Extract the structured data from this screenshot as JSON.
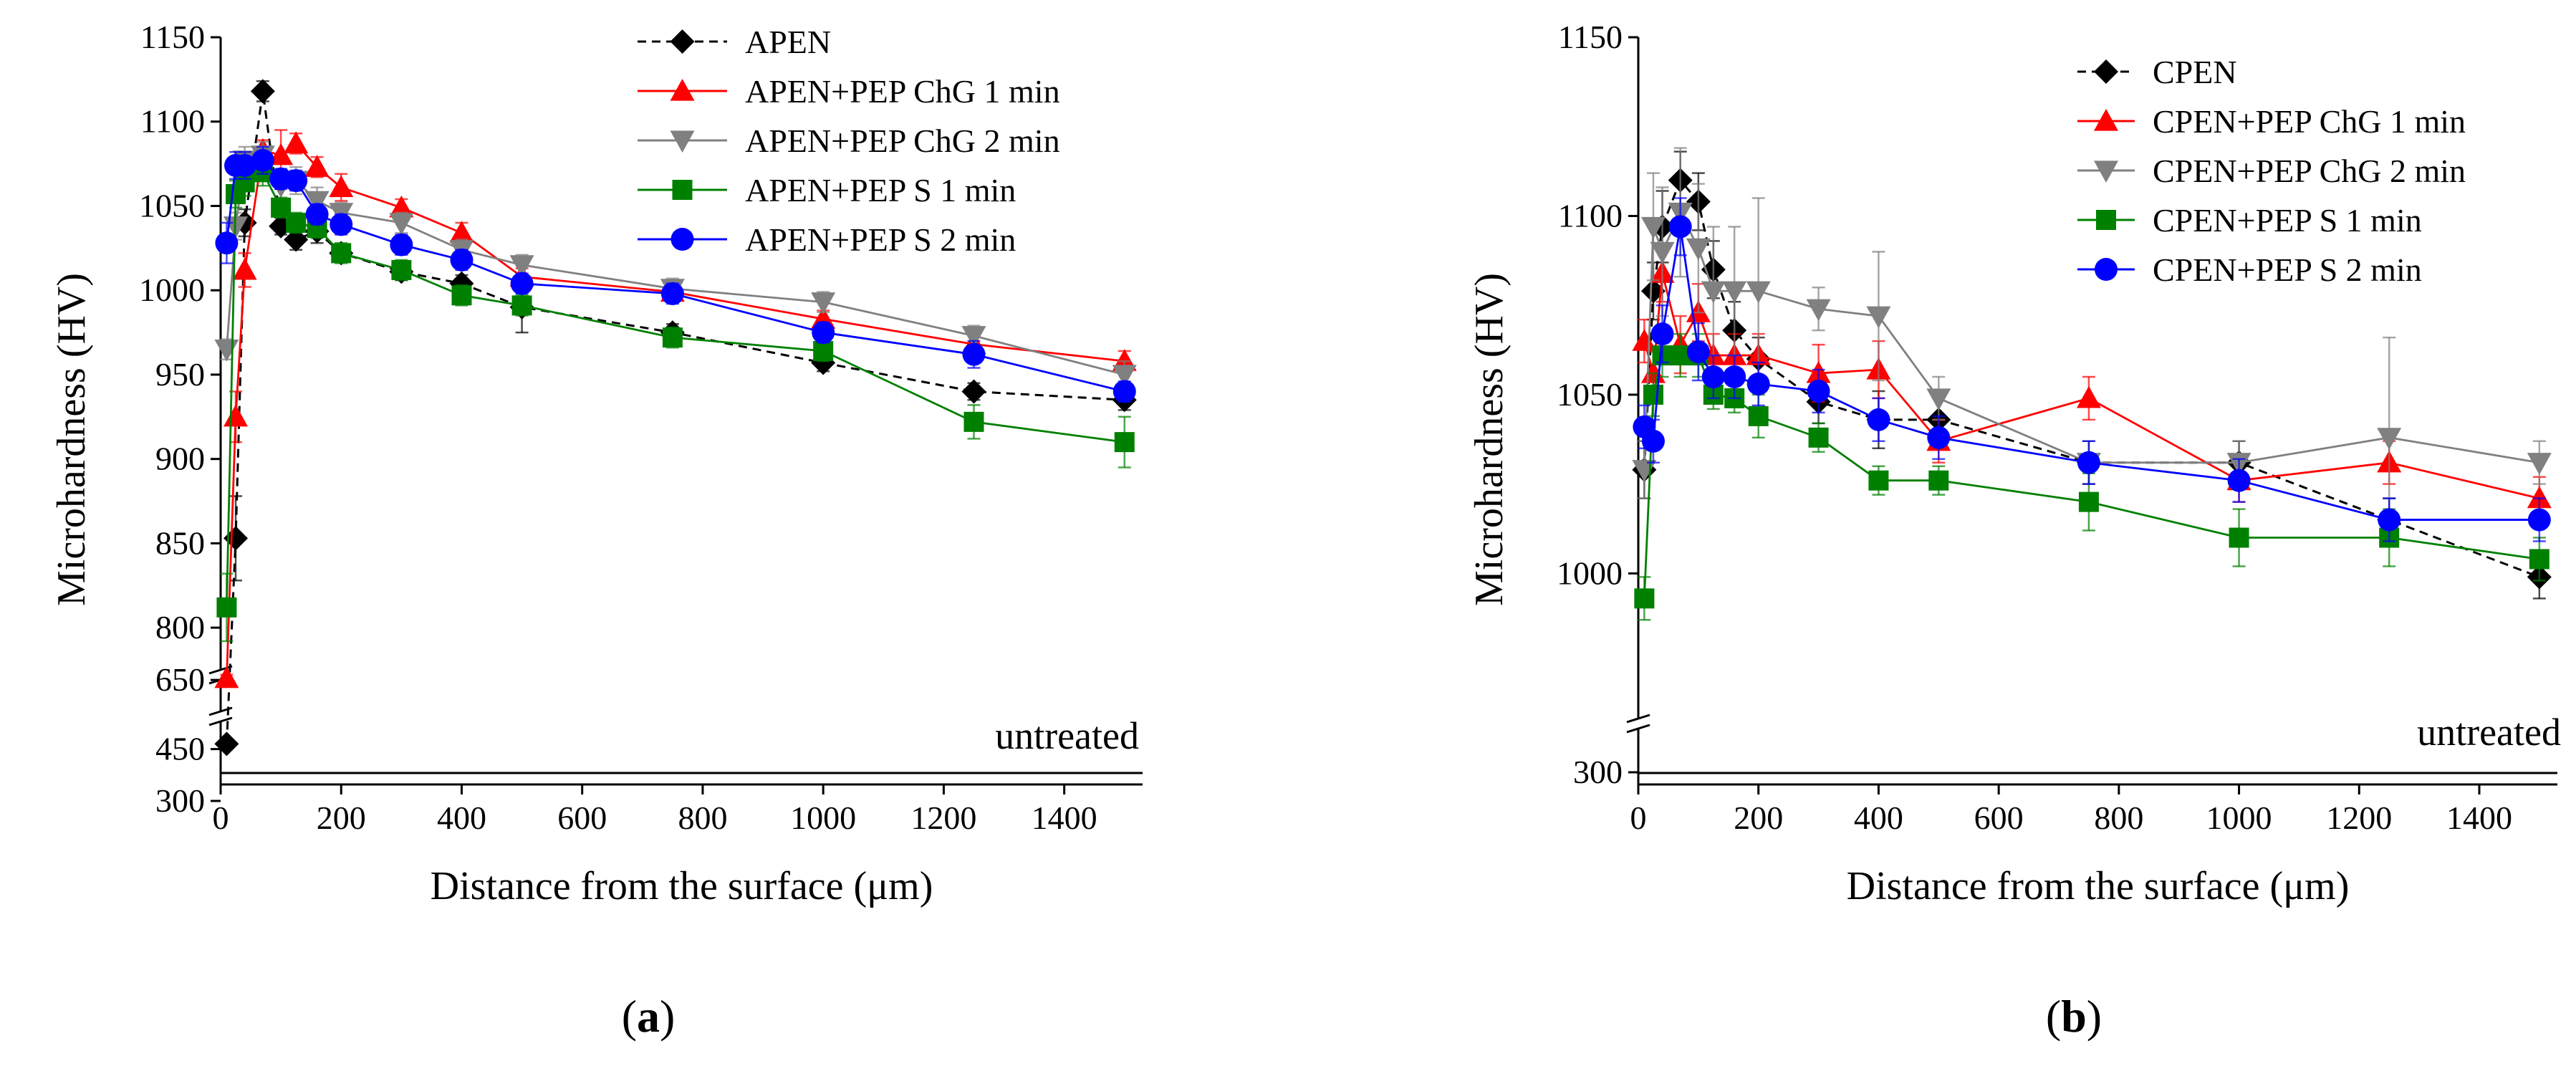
{
  "chart_data": [
    {
      "type": "line",
      "panel_label": "a",
      "xlabel": "Distance from the surface (μm)",
      "ylabel": "Microhardness (HV)",
      "xlim": [
        0,
        1530
      ],
      "ylim": [
        300,
        1150
      ],
      "axis_break": "broken y-axis: main segment 775–1150 HV; lower segment 300–700 HV",
      "x_ticks": [
        0,
        200,
        400,
        600,
        800,
        1000,
        1200,
        1400
      ],
      "x_tick_labels": [
        "0",
        "200",
        "400",
        "600",
        "800",
        "1000",
        "1200",
        "1400"
      ],
      "y_ticks": [
        800,
        850,
        900,
        950,
        1000,
        1050,
        1100,
        1150
      ],
      "y_tick_labels": [
        "800",
        "850",
        "900",
        "950",
        "1000",
        "1050",
        "1100",
        "1150"
      ],
      "y_ticks_lower": [
        300,
        450,
        650
      ],
      "y_tick_labels_lower": [
        "300",
        "450",
        "650"
      ],
      "baseline_value": 390,
      "annotation": "untreated",
      "legend_position": "top-right",
      "series": [
        {
          "name": "APEN",
          "color": "#000000",
          "marker": "diamond",
          "dash": true,
          "x": [
            10,
            25,
            40,
            70,
            100,
            125,
            160,
            200,
            300,
            400,
            500,
            750,
            1000,
            1250,
            1500
          ],
          "y": [
            465,
            853,
            1040,
            1118,
            1038,
            1030,
            1035,
            1022,
            1011,
            1004,
            990,
            975,
            957,
            940,
            935
          ],
          "err": [
            8,
            25,
            8,
            6,
            5,
            6,
            7,
            5,
            5,
            5,
            15,
            5,
            5,
            5,
            6
          ]
        },
        {
          "name": "APEN+PEP ChG 1 min",
          "color": "#ff0000",
          "marker": "triangle-up",
          "dash": false,
          "x": [
            10,
            25,
            40,
            70,
            100,
            125,
            160,
            200,
            300,
            400,
            500,
            750,
            1000,
            1250,
            1500
          ],
          "y": [
            655,
            925,
            1012,
            1083,
            1080,
            1087,
            1073,
            1061,
            1049,
            1034,
            1008,
            999,
            983,
            968,
            958
          ],
          "err": [
            10,
            15,
            10,
            6,
            15,
            6,
            6,
            8,
            5,
            6,
            5,
            5,
            5,
            5,
            6
          ]
        },
        {
          "name": "APEN+PEP ChG 2 min",
          "color": "#808080",
          "marker": "triangle-down",
          "dash": false,
          "x": [
            10,
            25,
            40,
            70,
            100,
            125,
            160,
            200,
            300,
            400,
            500,
            750,
            1000,
            1250,
            1500
          ],
          "y": [
            965,
            1038,
            1077,
            1080,
            1062,
            1065,
            1053,
            1046,
            1040,
            1024,
            1015,
            1001,
            993,
            973,
            950
          ],
          "err": [
            6,
            8,
            8,
            8,
            8,
            8,
            8,
            6,
            6,
            6,
            6,
            6,
            6,
            6,
            8
          ]
        },
        {
          "name": "APEN+PEP S 1 min",
          "color": "#008000",
          "marker": "square",
          "dash": false,
          "x": [
            10,
            25,
            40,
            70,
            100,
            125,
            160,
            200,
            300,
            400,
            500,
            750,
            1000,
            1250,
            1500
          ],
          "y": [
            812,
            1057,
            1064,
            1070,
            1049,
            1040,
            1037,
            1022,
            1012,
            997,
            991,
            972,
            964,
            922,
            910
          ],
          "err": [
            20,
            8,
            8,
            8,
            6,
            6,
            6,
            6,
            6,
            6,
            6,
            6,
            6,
            10,
            15
          ]
        },
        {
          "name": "APEN+PEP S 2 min",
          "color": "#0000ff",
          "marker": "circle",
          "dash": false,
          "x": [
            10,
            25,
            40,
            70,
            100,
            125,
            160,
            200,
            300,
            400,
            500,
            750,
            1000,
            1250,
            1500
          ],
          "y": [
            1028,
            1074,
            1074,
            1077,
            1066,
            1065,
            1045,
            1039,
            1027,
            1018,
            1004,
            998,
            975,
            962,
            940
          ],
          "err": [
            12,
            8,
            8,
            8,
            6,
            6,
            6,
            6,
            6,
            6,
            6,
            6,
            6,
            8,
            6
          ]
        }
      ]
    },
    {
      "type": "line",
      "panel_label": "b",
      "xlabel": "Distance from the surface (μm)",
      "ylabel": "Microhardness (HV)",
      "xlim": [
        0,
        1530
      ],
      "ylim": [
        300,
        1150
      ],
      "axis_break": "broken y-axis: main segment 960–1150 HV; lower segment near 300 HV",
      "x_ticks": [
        0,
        200,
        400,
        600,
        800,
        1000,
        1200,
        1400
      ],
      "x_tick_labels": [
        "0",
        "200",
        "400",
        "600",
        "800",
        "1000",
        "1200",
        "1400"
      ],
      "y_ticks": [
        1000,
        1050,
        1100,
        1150
      ],
      "y_tick_labels": [
        "1000",
        "1050",
        "1100",
        "1150"
      ],
      "y_ticks_lower": [
        300
      ],
      "y_tick_labels_lower": [
        "300"
      ],
      "baseline_value": 300,
      "annotation": "untreated",
      "legend_position": "top-right",
      "series": [
        {
          "name": "CPEN",
          "color": "#000000",
          "marker": "diamond",
          "dash": true,
          "x": [
            10,
            25,
            40,
            70,
            100,
            125,
            160,
            200,
            300,
            400,
            500,
            750,
            1000,
            1250,
            1500
          ],
          "y": [
            1029,
            1079,
            1097,
            1110,
            1104,
            1085,
            1068,
            1060,
            1048,
            1043,
            1043,
            1031,
            1031,
            1015,
            999
          ],
          "err": [
            8,
            8,
            10,
            8,
            8,
            8,
            8,
            6,
            6,
            8,
            8,
            6,
            6,
            6,
            6
          ]
        },
        {
          "name": "CPEN+PEP ChG 1 min",
          "color": "#ff0000",
          "marker": "triangle-up",
          "dash": false,
          "x": [
            10,
            25,
            40,
            70,
            100,
            125,
            160,
            200,
            300,
            400,
            500,
            750,
            1000,
            1250,
            1500
          ],
          "y": [
            1065,
            1056,
            1084,
            1064,
            1073,
            1061,
            1061,
            1061,
            1056,
            1057,
            1037,
            1049,
            1026,
            1031,
            1021
          ],
          "err": [
            6,
            6,
            8,
            8,
            8,
            6,
            6,
            6,
            8,
            8,
            6,
            6,
            6,
            6,
            6
          ]
        },
        {
          "name": "CPEN+PEP ChG 2 min",
          "color": "#808080",
          "marker": "triangle-down",
          "dash": false,
          "x": [
            10,
            25,
            40,
            70,
            100,
            125,
            160,
            200,
            300,
            400,
            500,
            750,
            1000,
            1250,
            1500
          ],
          "y": [
            1029,
            1097,
            1090,
            1101,
            1091,
            1079,
            1079,
            1079,
            1074,
            1072,
            1049,
            1031,
            1031,
            1038,
            1031
          ],
          "err": [
            8,
            15,
            18,
            18,
            18,
            18,
            18,
            26,
            6,
            18,
            6,
            6,
            6,
            28,
            6
          ]
        },
        {
          "name": "CPEN+PEP S 1 min",
          "color": "#008000",
          "marker": "square",
          "dash": false,
          "x": [
            10,
            25,
            40,
            70,
            100,
            125,
            160,
            200,
            300,
            400,
            500,
            750,
            1000,
            1250,
            1500
          ],
          "y": [
            993,
            1050,
            1061,
            1061,
            1061,
            1050,
            1049,
            1044,
            1038,
            1026,
            1026,
            1020,
            1010,
            1010,
            1004
          ],
          "err": [
            6,
            6,
            6,
            6,
            6,
            4,
            4,
            6,
            4,
            4,
            4,
            8,
            8,
            8,
            6
          ]
        },
        {
          "name": "CPEN+PEP S 2 min",
          "color": "#0000ff",
          "marker": "circle",
          "dash": false,
          "x": [
            10,
            25,
            40,
            70,
            100,
            125,
            160,
            200,
            300,
            400,
            500,
            750,
            1000,
            1250,
            1500
          ],
          "y": [
            1041,
            1037,
            1067,
            1097,
            1062,
            1055,
            1055,
            1053,
            1051,
            1043,
            1038,
            1031,
            1026,
            1015,
            1015
          ],
          "err": [
            6,
            6,
            8,
            8,
            8,
            6,
            6,
            6,
            6,
            6,
            6,
            6,
            6,
            6,
            6
          ]
        }
      ]
    }
  ]
}
